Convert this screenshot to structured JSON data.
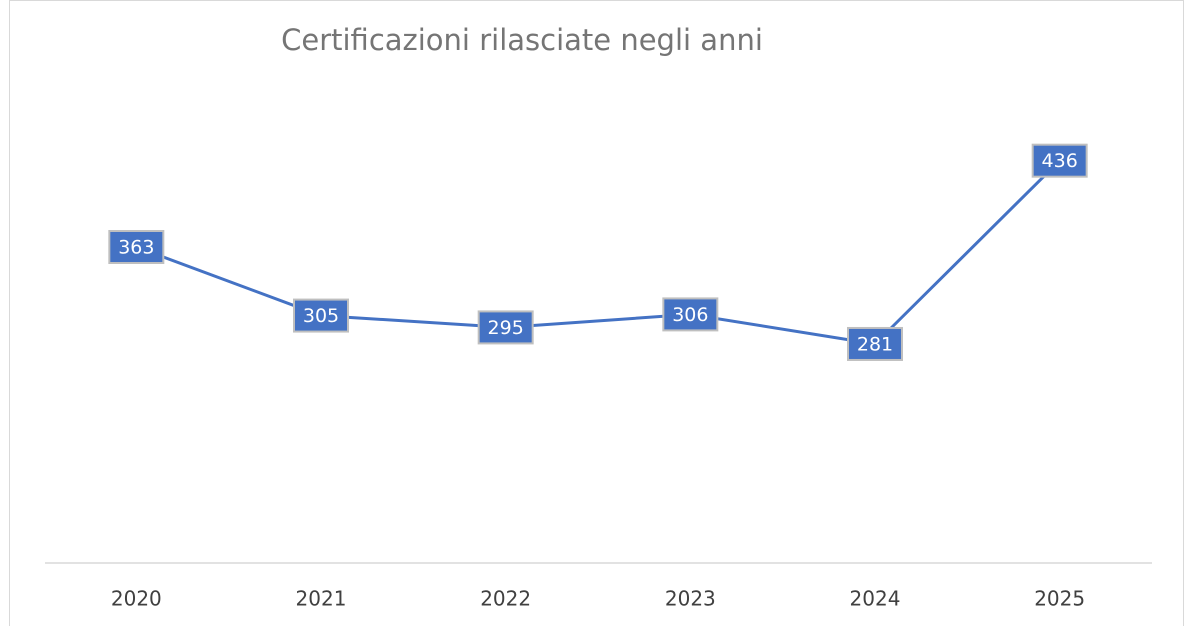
{
  "chart_data": {
    "type": "line",
    "title": "Certificazioni rilasciate negli anni",
    "categories": [
      "2020",
      "2021",
      "2022",
      "2023",
      "2024",
      "2025"
    ],
    "values": [
      363,
      305,
      295,
      306,
      281,
      436
    ],
    "color": "#4472c4",
    "marker_color": "#3a8a5a",
    "label_fill": "#4472c4",
    "ylim": [
      100,
      500
    ],
    "grid": false
  }
}
